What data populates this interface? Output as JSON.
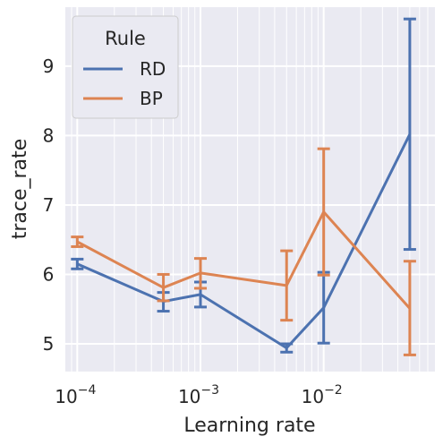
{
  "chart_data": {
    "type": "line",
    "xlabel": "Learning rate",
    "ylabel": "trace_rate",
    "xscale": "log",
    "xlim": [
      8e-05,
      0.08
    ],
    "ylim": [
      4.6,
      9.85
    ],
    "x_ticks": [
      {
        "value": 0.0001,
        "base": "10",
        "exp": "−4"
      },
      {
        "value": 0.001,
        "base": "10",
        "exp": "−3"
      },
      {
        "value": 0.01,
        "base": "10",
        "exp": "−2"
      }
    ],
    "y_ticks": [
      5,
      6,
      7,
      8,
      9
    ],
    "grid": true,
    "legend": {
      "title": "Rule",
      "placement": "top-left"
    },
    "series": [
      {
        "name": "RD",
        "color": "#4c72b0",
        "points": [
          {
            "x": 0.0001,
            "y": 6.15,
            "lo": 6.08,
            "hi": 6.22
          },
          {
            "x": 0.0005,
            "y": 5.61,
            "lo": 5.47,
            "hi": 5.74
          },
          {
            "x": 0.001,
            "y": 5.71,
            "lo": 5.53,
            "hi": 5.89
          },
          {
            "x": 0.005,
            "y": 4.94,
            "lo": 4.88,
            "hi": 5.0
          },
          {
            "x": 0.01,
            "y": 5.52,
            "lo": 5.01,
            "hi": 6.03
          },
          {
            "x": 0.05,
            "y": 8.02,
            "lo": 6.36,
            "hi": 9.68
          }
        ]
      },
      {
        "name": "BP",
        "color": "#dd8452",
        "points": [
          {
            "x": 0.0001,
            "y": 6.47,
            "lo": 6.4,
            "hi": 6.54
          },
          {
            "x": 0.0005,
            "y": 5.81,
            "lo": 5.62,
            "hi": 6.0
          },
          {
            "x": 0.001,
            "y": 6.02,
            "lo": 5.8,
            "hi": 6.23
          },
          {
            "x": 0.005,
            "y": 5.84,
            "lo": 5.34,
            "hi": 6.34
          },
          {
            "x": 0.01,
            "y": 6.9,
            "lo": 5.99,
            "hi": 7.81
          },
          {
            "x": 0.05,
            "y": 5.51,
            "lo": 4.84,
            "hi": 6.19
          }
        ]
      }
    ]
  }
}
